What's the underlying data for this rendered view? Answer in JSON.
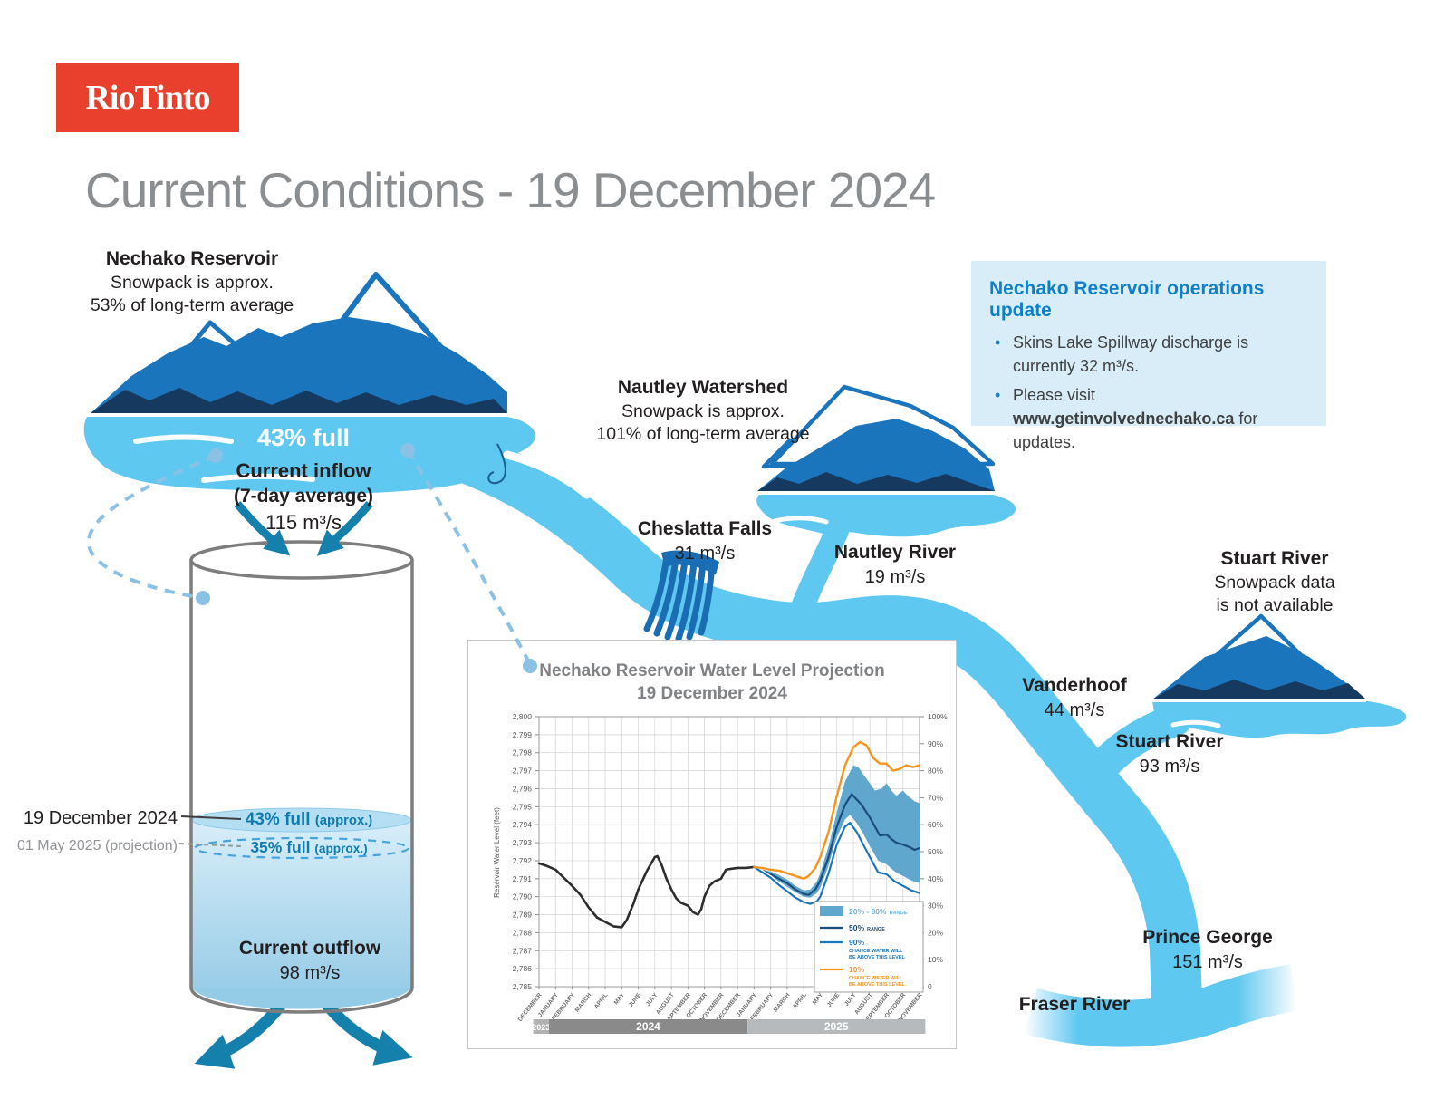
{
  "brand": {
    "logo_text": "RioTinto",
    "brand_color": "#e8402d"
  },
  "page_title": "Current Conditions - 19 December 2024",
  "colors": {
    "river": "#5ec8f0",
    "mountain_fill": "#1b75bc",
    "mountain_base": "#15395f",
    "arrow_teal": "#1580ac",
    "ops_bg": "#d9edf8",
    "ops_heading": "#0f80c5",
    "tank_text_teal": "#0e7cae",
    "title_gray": "#8b8e91"
  },
  "nechako_reservoir": {
    "name": "Nechako Reservoir",
    "snowpack_line1": "Snowpack is approx.",
    "snowpack_line2": "53% of long-term average",
    "fullness": "43% full",
    "inflow_label": "Current inflow",
    "inflow_sublabel": "(7-day average)",
    "inflow_value": "115 m³/s"
  },
  "tank": {
    "current_date_label": "19 December 2024",
    "current_level": "43% full",
    "current_level_suffix": "(approx.)",
    "projection_date_label": "01 May 2025 (projection)",
    "projected_level": "35% full",
    "projected_level_suffix": "(approx.)",
    "outflow_label": "Current outflow",
    "outflow_value": "98 m³/s"
  },
  "ops_update": {
    "title": "Nechako Reservoir operations update",
    "bullet1_text": "Skins Lake Spillway discharge is currently 32 m³/s.",
    "bullet2_prefix": "Please visit ",
    "bullet2_link": "www.getinvolvednechako.ca",
    "bullet2_suffix": " for updates."
  },
  "nautley_watershed": {
    "name": "Nautley Watershed",
    "snowpack_line1": "Snowpack is approx.",
    "snowpack_line2": "101% of long-term average"
  },
  "cheslatta_falls": {
    "name": "Cheslatta Falls",
    "flow": "31 m³/s"
  },
  "nautley_river": {
    "name": "Nautley River",
    "flow": "19 m³/s"
  },
  "stuart_watershed": {
    "name": "Stuart River",
    "snowpack_line1": "Snowpack data",
    "snowpack_line2": "is not available"
  },
  "vanderhoof": {
    "name": "Vanderhoof",
    "flow": "44 m³/s"
  },
  "stuart_river": {
    "name": "Stuart River",
    "flow": "93 m³/s"
  },
  "prince_george": {
    "name": "Prince George",
    "flow": "151 m³/s"
  },
  "fraser_river": {
    "name": "Fraser River"
  },
  "chart_data": {
    "type": "line",
    "title": "Nechako Reservoir Water Level Projection",
    "subtitle": "19 December 2024",
    "ylabel": "Reservoir Water Level (feet)",
    "ylim": [
      2785,
      2800
    ],
    "ystep": 1,
    "y2lim": [
      0,
      100
    ],
    "y2step": 10,
    "grid": true,
    "legend_position": "bottom-right",
    "x_months": [
      "DECEMBER",
      "JANUARY",
      "FEBRUARY",
      "MARCH",
      "APRIL",
      "MAY",
      "JUNE",
      "JULY",
      "AUGUST",
      "SEPTEMBER",
      "OCTOBER",
      "NOVEMBER",
      "DECEMBER",
      "JANUARY",
      "FEBRUARY",
      "MARCH",
      "APRIL",
      "MAY",
      "JUNE",
      "JULY",
      "AUGUST",
      "SEPTEMBER",
      "OCTOBER",
      "NOVEMBER"
    ],
    "year_bands": [
      {
        "label": "2023",
        "from": -0.35,
        "to": 0.6,
        "color": "#b2b2b2"
      },
      {
        "label": "2024",
        "from": 0.6,
        "to": 12.6,
        "color": "#8a8a8a"
      },
      {
        "label": "2025",
        "from": 12.6,
        "to": 23.35,
        "color": "#b6babd"
      }
    ],
    "band": {
      "name": "20% - 80% RANGE",
      "color": "#5fa7cc",
      "upper": [
        [
          13,
          2791.65
        ],
        [
          13.5,
          2791.5
        ],
        [
          14,
          2791.4
        ],
        [
          14.5,
          2791.2
        ],
        [
          15,
          2790.95
        ],
        [
          15.5,
          2790.6
        ],
        [
          16,
          2790.35
        ],
        [
          16.4,
          2790.4
        ],
        [
          16.8,
          2790.85
        ],
        [
          17,
          2791.3
        ],
        [
          17.5,
          2792.8
        ],
        [
          18,
          2794.7
        ],
        [
          18.5,
          2796.4
        ],
        [
          19,
          2797.3
        ],
        [
          19.3,
          2797.2
        ],
        [
          19.6,
          2796.8
        ],
        [
          20,
          2796.3
        ],
        [
          20.3,
          2795.9
        ],
        [
          20.7,
          2796.0
        ],
        [
          21,
          2796.3
        ],
        [
          21.3,
          2795.9
        ],
        [
          21.6,
          2795.6
        ],
        [
          22,
          2795.9
        ],
        [
          22.3,
          2795.6
        ],
        [
          22.7,
          2795.3
        ],
        [
          23,
          2795.2
        ]
      ],
      "lower": [
        [
          13,
          2791.65
        ],
        [
          13.5,
          2791.4
        ],
        [
          14,
          2791.15
        ],
        [
          14.5,
          2790.85
        ],
        [
          15,
          2790.55
        ],
        [
          15.5,
          2790.25
        ],
        [
          16,
          2790.0
        ],
        [
          16.4,
          2789.95
        ],
        [
          16.8,
          2790.2
        ],
        [
          17,
          2790.5
        ],
        [
          17.5,
          2791.7
        ],
        [
          18,
          2793.3
        ],
        [
          18.5,
          2794.3
        ],
        [
          18.8,
          2794.55
        ],
        [
          19.2,
          2794.1
        ],
        [
          19.6,
          2793.5
        ],
        [
          20,
          2792.8
        ],
        [
          20.5,
          2792.0
        ],
        [
          21,
          2791.8
        ],
        [
          21.5,
          2791.4
        ],
        [
          22,
          2791.15
        ],
        [
          22.5,
          2790.9
        ],
        [
          23,
          2790.75
        ]
      ]
    },
    "series": [
      {
        "name": "Historical water level",
        "color": "#2e2d2c",
        "width": 2.6,
        "points": [
          [
            0,
            2791.85
          ],
          [
            0.5,
            2791.7
          ],
          [
            1,
            2791.5
          ],
          [
            1.5,
            2791.05
          ],
          [
            2,
            2790.6
          ],
          [
            2.5,
            2790.1
          ],
          [
            3,
            2789.4
          ],
          [
            3.5,
            2788.85
          ],
          [
            4,
            2788.6
          ],
          [
            4.5,
            2788.35
          ],
          [
            5,
            2788.3
          ],
          [
            5.3,
            2788.7
          ],
          [
            5.7,
            2789.6
          ],
          [
            6,
            2790.4
          ],
          [
            6.5,
            2791.4
          ],
          [
            7,
            2792.2
          ],
          [
            7.15,
            2792.25
          ],
          [
            7.4,
            2791.8
          ],
          [
            7.7,
            2791.0
          ],
          [
            8,
            2790.4
          ],
          [
            8.3,
            2789.9
          ],
          [
            8.6,
            2789.65
          ],
          [
            9,
            2789.5
          ],
          [
            9.3,
            2789.15
          ],
          [
            9.6,
            2789.0
          ],
          [
            9.8,
            2789.3
          ],
          [
            10,
            2790.0
          ],
          [
            10.3,
            2790.6
          ],
          [
            10.6,
            2790.85
          ],
          [
            11,
            2791.0
          ],
          [
            11.3,
            2791.5
          ],
          [
            11.6,
            2791.55
          ],
          [
            12,
            2791.6
          ],
          [
            12.5,
            2791.6
          ],
          [
            13,
            2791.65
          ]
        ]
      },
      {
        "name": "50% RANGE",
        "color": "#1c4c7c",
        "width": 2.2,
        "points": [
          [
            13,
            2791.65
          ],
          [
            13.5,
            2791.45
          ],
          [
            14,
            2791.25
          ],
          [
            14.5,
            2791.0
          ],
          [
            15,
            2790.75
          ],
          [
            15.5,
            2790.4
          ],
          [
            16,
            2790.15
          ],
          [
            16.3,
            2790.1
          ],
          [
            16.7,
            2790.4
          ],
          [
            17,
            2790.9
          ],
          [
            17.5,
            2792.2
          ],
          [
            18,
            2793.9
          ],
          [
            18.5,
            2795.1
          ],
          [
            18.9,
            2795.7
          ],
          [
            19.2,
            2795.4
          ],
          [
            19.5,
            2795.1
          ],
          [
            20,
            2794.4
          ],
          [
            20.3,
            2793.9
          ],
          [
            20.6,
            2793.4
          ],
          [
            21,
            2793.45
          ],
          [
            21.3,
            2793.2
          ],
          [
            21.6,
            2793.0
          ],
          [
            22,
            2792.9
          ],
          [
            22.4,
            2792.75
          ],
          [
            22.7,
            2792.6
          ],
          [
            23,
            2792.7
          ]
        ]
      },
      {
        "name": "90% CHANCE WATER WILL BE ABOVE THIS LEVEL",
        "color": "#1b75bc",
        "width": 2.2,
        "halo": true,
        "points": [
          [
            13,
            2791.65
          ],
          [
            13.5,
            2791.35
          ],
          [
            14,
            2791.05
          ],
          [
            14.5,
            2790.65
          ],
          [
            15,
            2790.3
          ],
          [
            15.5,
            2789.95
          ],
          [
            16,
            2789.7
          ],
          [
            16.4,
            2789.6
          ],
          [
            16.8,
            2789.75
          ],
          [
            17,
            2790.0
          ],
          [
            17.5,
            2791.3
          ],
          [
            18,
            2792.9
          ],
          [
            18.5,
            2793.9
          ],
          [
            18.8,
            2794.1
          ],
          [
            19.2,
            2793.6
          ],
          [
            19.6,
            2792.9
          ],
          [
            20,
            2792.2
          ],
          [
            20.5,
            2791.35
          ],
          [
            21,
            2791.25
          ],
          [
            21.5,
            2790.85
          ],
          [
            22,
            2790.6
          ],
          [
            22.5,
            2790.35
          ],
          [
            23,
            2790.2
          ]
        ]
      },
      {
        "name": "10% CHANCE WATER WILL BE ABOVE THIS LEVEL",
        "color": "#f7941e",
        "width": 2.4,
        "points": [
          [
            13,
            2791.65
          ],
          [
            13.5,
            2791.6
          ],
          [
            14,
            2791.5
          ],
          [
            14.5,
            2791.45
          ],
          [
            15,
            2791.3
          ],
          [
            15.5,
            2791.15
          ],
          [
            16,
            2791.0
          ],
          [
            16.3,
            2791.15
          ],
          [
            16.7,
            2791.6
          ],
          [
            17,
            2792.2
          ],
          [
            17.5,
            2793.6
          ],
          [
            18,
            2795.6
          ],
          [
            18.5,
            2797.3
          ],
          [
            19,
            2798.3
          ],
          [
            19.4,
            2798.6
          ],
          [
            19.8,
            2798.4
          ],
          [
            20.2,
            2797.7
          ],
          [
            20.6,
            2797.4
          ],
          [
            21,
            2797.4
          ],
          [
            21.4,
            2797.0
          ],
          [
            21.8,
            2797.1
          ],
          [
            22.2,
            2797.3
          ],
          [
            22.6,
            2797.2
          ],
          [
            23,
            2797.3
          ]
        ]
      }
    ],
    "legend": [
      {
        "swatch": "band",
        "color": "#5fa7cc",
        "big": "20% - 80%",
        "small": [
          "RANGE"
        ],
        "text_color": "#6fb3d8",
        "inline_small": true
      },
      {
        "swatch": "line",
        "color": "#1c4c7c",
        "big": "50%",
        "small": [
          "RANGE"
        ],
        "text_color": "#1c4c7c",
        "inline_small": true
      },
      {
        "swatch": "line",
        "color": "#1b75bc",
        "big": "90%",
        "small": [
          "CHANCE WATER WILL",
          "BE ABOVE THIS LEVEL"
        ],
        "text_color": "#1b75bc",
        "inline_small": false
      },
      {
        "swatch": "line",
        "color": "#f7941e",
        "big": "10%",
        "small": [
          "CHANCE WATER WILL",
          "BE ABOVE THIS LEVEL"
        ],
        "text_color": "#f7941e",
        "inline_small": false
      }
    ]
  }
}
